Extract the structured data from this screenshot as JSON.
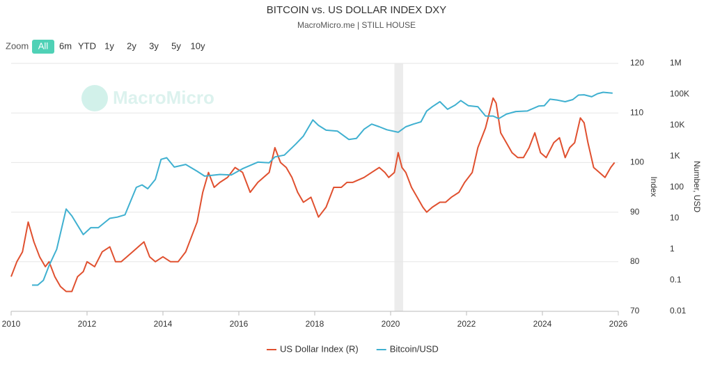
{
  "chart_data": {
    "type": "line",
    "title": "BITCOIN vs. US DOLLAR INDEX DXY",
    "subtitle": "MacroMicro.me | STILL HOUSE",
    "y_label": "Index",
    "y2_label": "Number, USD",
    "xlim": [
      2010,
      2026
    ],
    "xticks": [
      2010,
      2012,
      2014,
      2016,
      2018,
      2020,
      2022,
      2024,
      2026
    ],
    "ylim": [
      70,
      120
    ],
    "yticks": [
      70,
      80,
      90,
      100,
      110,
      120
    ],
    "y2lim": [
      0.01,
      1000000
    ],
    "y2_log": true,
    "y2ticks": [
      0.01,
      0.1,
      1,
      10,
      100,
      {
        "value": 1000,
        "label": "1K"
      },
      {
        "value": 10000,
        "label": "10K"
      },
      {
        "value": 100000,
        "label": "100K"
      },
      {
        "value": 1000000,
        "label": "1M"
      }
    ],
    "grid": true,
    "legend": "bottom",
    "shaded_periods": [
      [
        2020.1,
        2020.33
      ]
    ],
    "series": [
      {
        "name": "US Dollar Index (R)",
        "color": "#e0502f",
        "axis": "y",
        "x": [
          2010.0,
          2010.15,
          2010.3,
          2010.45,
          2010.6,
          2010.75,
          2010.9,
          2011.0,
          2011.15,
          2011.3,
          2011.45,
          2011.6,
          2011.75,
          2011.9,
          2012.0,
          2012.2,
          2012.4,
          2012.6,
          2012.75,
          2012.9,
          2013.05,
          2013.2,
          2013.35,
          2013.5,
          2013.65,
          2013.8,
          2014.0,
          2014.2,
          2014.4,
          2014.6,
          2014.75,
          2014.9,
          2015.05,
          2015.2,
          2015.35,
          2015.5,
          2015.7,
          2015.9,
          2016.1,
          2016.3,
          2016.5,
          2016.8,
          2016.95,
          2017.1,
          2017.25,
          2017.4,
          2017.55,
          2017.7,
          2017.9,
          2018.1,
          2018.3,
          2018.5,
          2018.7,
          2018.85,
          2019.0,
          2019.3,
          2019.5,
          2019.7,
          2019.85,
          2019.95,
          2020.1,
          2020.2,
          2020.3,
          2020.4,
          2020.55,
          2020.7,
          2020.85,
          2020.95,
          2021.1,
          2021.3,
          2021.45,
          2021.6,
          2021.8,
          2021.95,
          2022.15,
          2022.3,
          2022.5,
          2022.7,
          2022.78,
          2022.9,
          2023.05,
          2023.2,
          2023.35,
          2023.5,
          2023.65,
          2023.8,
          2023.95,
          2024.1,
          2024.3,
          2024.45,
          2024.6,
          2024.72,
          2024.85,
          2025.0,
          2025.1,
          2025.2,
          2025.35,
          2025.5,
          2025.65,
          2025.8,
          2025.9
        ],
        "values": [
          77,
          80,
          82,
          88,
          84,
          81,
          79,
          80,
          77,
          75,
          74,
          74,
          77,
          78,
          80,
          79,
          82,
          83,
          80,
          80,
          81,
          82,
          83,
          84,
          81,
          80,
          81,
          80,
          80,
          82,
          85,
          88,
          94,
          98,
          95,
          96,
          97,
          99,
          98,
          94,
          96,
          98,
          103,
          100,
          99,
          97,
          94,
          92,
          93,
          89,
          91,
          95,
          95,
          96,
          96,
          97,
          98,
          99,
          98,
          97,
          98,
          102,
          99,
          98,
          95,
          93,
          91,
          90,
          91,
          92,
          92,
          93,
          94,
          96,
          98,
          103,
          107,
          113,
          112,
          106,
          104,
          102,
          101,
          101,
          103,
          106,
          102,
          101,
          104,
          105,
          101,
          103,
          104,
          109,
          108,
          104,
          99,
          98,
          97,
          99,
          100
        ]
      },
      {
        "name": "Bitcoin/USD",
        "color": "#3fb0d0",
        "axis": "y2",
        "x": [
          2010.55,
          2010.7,
          2010.85,
          2011.0,
          2011.2,
          2011.45,
          2011.6,
          2011.9,
          2012.1,
          2012.3,
          2012.6,
          2012.8,
          2013.0,
          2013.3,
          2013.45,
          2013.6,
          2013.8,
          2013.95,
          2014.1,
          2014.3,
          2014.6,
          2014.9,
          2015.1,
          2015.5,
          2015.8,
          2016.1,
          2016.5,
          2016.8,
          2016.95,
          2017.2,
          2017.5,
          2017.7,
          2017.95,
          2018.1,
          2018.3,
          2018.6,
          2018.9,
          2019.1,
          2019.3,
          2019.5,
          2019.7,
          2019.9,
          2020.2,
          2020.4,
          2020.6,
          2020.8,
          2020.95,
          2021.1,
          2021.3,
          2021.5,
          2021.7,
          2021.85,
          2022.05,
          2022.3,
          2022.5,
          2022.7,
          2022.85,
          2023.05,
          2023.3,
          2023.6,
          2023.9,
          2024.05,
          2024.2,
          2024.4,
          2024.6,
          2024.8,
          2024.95,
          2025.1,
          2025.3,
          2025.45,
          2025.6,
          2025.75,
          2025.85
        ],
        "values": [
          0.07,
          0.07,
          0.1,
          0.3,
          1,
          20,
          12,
          3,
          5,
          5,
          10,
          11,
          13,
          100,
          120,
          90,
          180,
          800,
          900,
          450,
          550,
          330,
          230,
          260,
          250,
          400,
          650,
          620,
          960,
          1100,
          2500,
          4500,
          15000,
          10000,
          7000,
          6500,
          3500,
          3800,
          7500,
          11000,
          9000,
          7200,
          6000,
          9000,
          11000,
          13000,
          29000,
          40000,
          58000,
          33000,
          45000,
          63000,
          43000,
          40000,
          20000,
          20000,
          16500,
          23000,
          28000,
          29000,
          42000,
          43000,
          70000,
          65000,
          58000,
          68000,
          95000,
          97000,
          84000,
          105000,
          117000,
          112000,
          110000
        ]
      }
    ]
  },
  "range_selector": {
    "label": "Zoom",
    "buttons": [
      "All",
      "6m",
      "YTD",
      "1y",
      "2y",
      "3y",
      "5y",
      "10y"
    ],
    "active": 0
  },
  "watermark": "MacroMicro"
}
